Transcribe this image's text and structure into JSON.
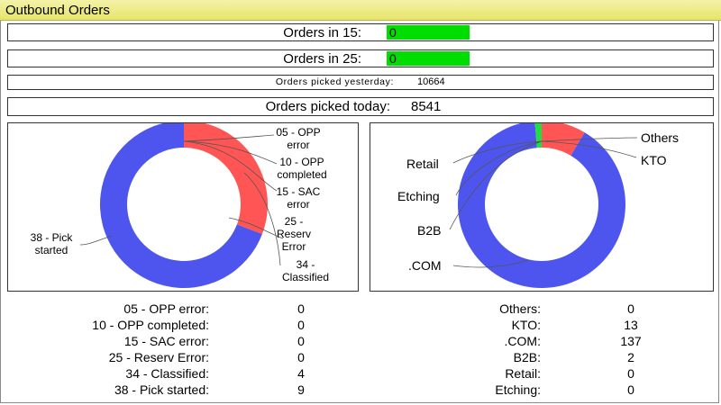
{
  "title": "Outbound Orders",
  "rows": {
    "orders15": {
      "label": "Orders in 15:",
      "value": "0"
    },
    "orders25": {
      "label": "Orders in 25:",
      "value": "0"
    },
    "yesterday": {
      "label": "Orders picked yesterday:",
      "value": "10664"
    },
    "today": {
      "label": "Orders picked today:",
      "value": "8541"
    }
  },
  "colors": {
    "red": "#ff5555",
    "blue": "#4d55ee",
    "green": "#22dd44",
    "bar": "#00dd00"
  },
  "left_chart": {
    "labels": {
      "opp_error": [
        "05 - OPP",
        "error"
      ],
      "opp_completed": [
        "10 - OPP",
        "completed"
      ],
      "sac_error": [
        "15 - SAC",
        "error"
      ],
      "reserv_error": [
        "25 -",
        "Reserv",
        "Error"
      ],
      "classified": [
        "34 -",
        "Classified"
      ],
      "pick_started": [
        "38 - Pick",
        "started"
      ]
    }
  },
  "right_chart": {
    "labels": {
      "others": "Others",
      "kto": "KTO",
      "retail": "Retail",
      "etching": "Etching",
      "b2b": "B2B",
      "com": ".COM"
    }
  },
  "left_stats": [
    {
      "label": "05 - OPP error:",
      "value": "0"
    },
    {
      "label": "10 - OPP completed:",
      "value": "0"
    },
    {
      "label": "15 - SAC error:",
      "value": "0"
    },
    {
      "label": "25 - Reserv Error:",
      "value": "0"
    },
    {
      "label": "34 - Classified:",
      "value": "4"
    },
    {
      "label": "38 - Pick started:",
      "value": "9"
    }
  ],
  "right_stats": [
    {
      "label": "Others:",
      "value": "0"
    },
    {
      "label": "KTO:",
      "value": "13"
    },
    {
      "label": ".COM:",
      "value": "137"
    },
    {
      "label": "B2B:",
      "value": "2"
    },
    {
      "label": "Retail:",
      "value": "0"
    },
    {
      "label": "Etching:",
      "value": "0"
    }
  ]
}
